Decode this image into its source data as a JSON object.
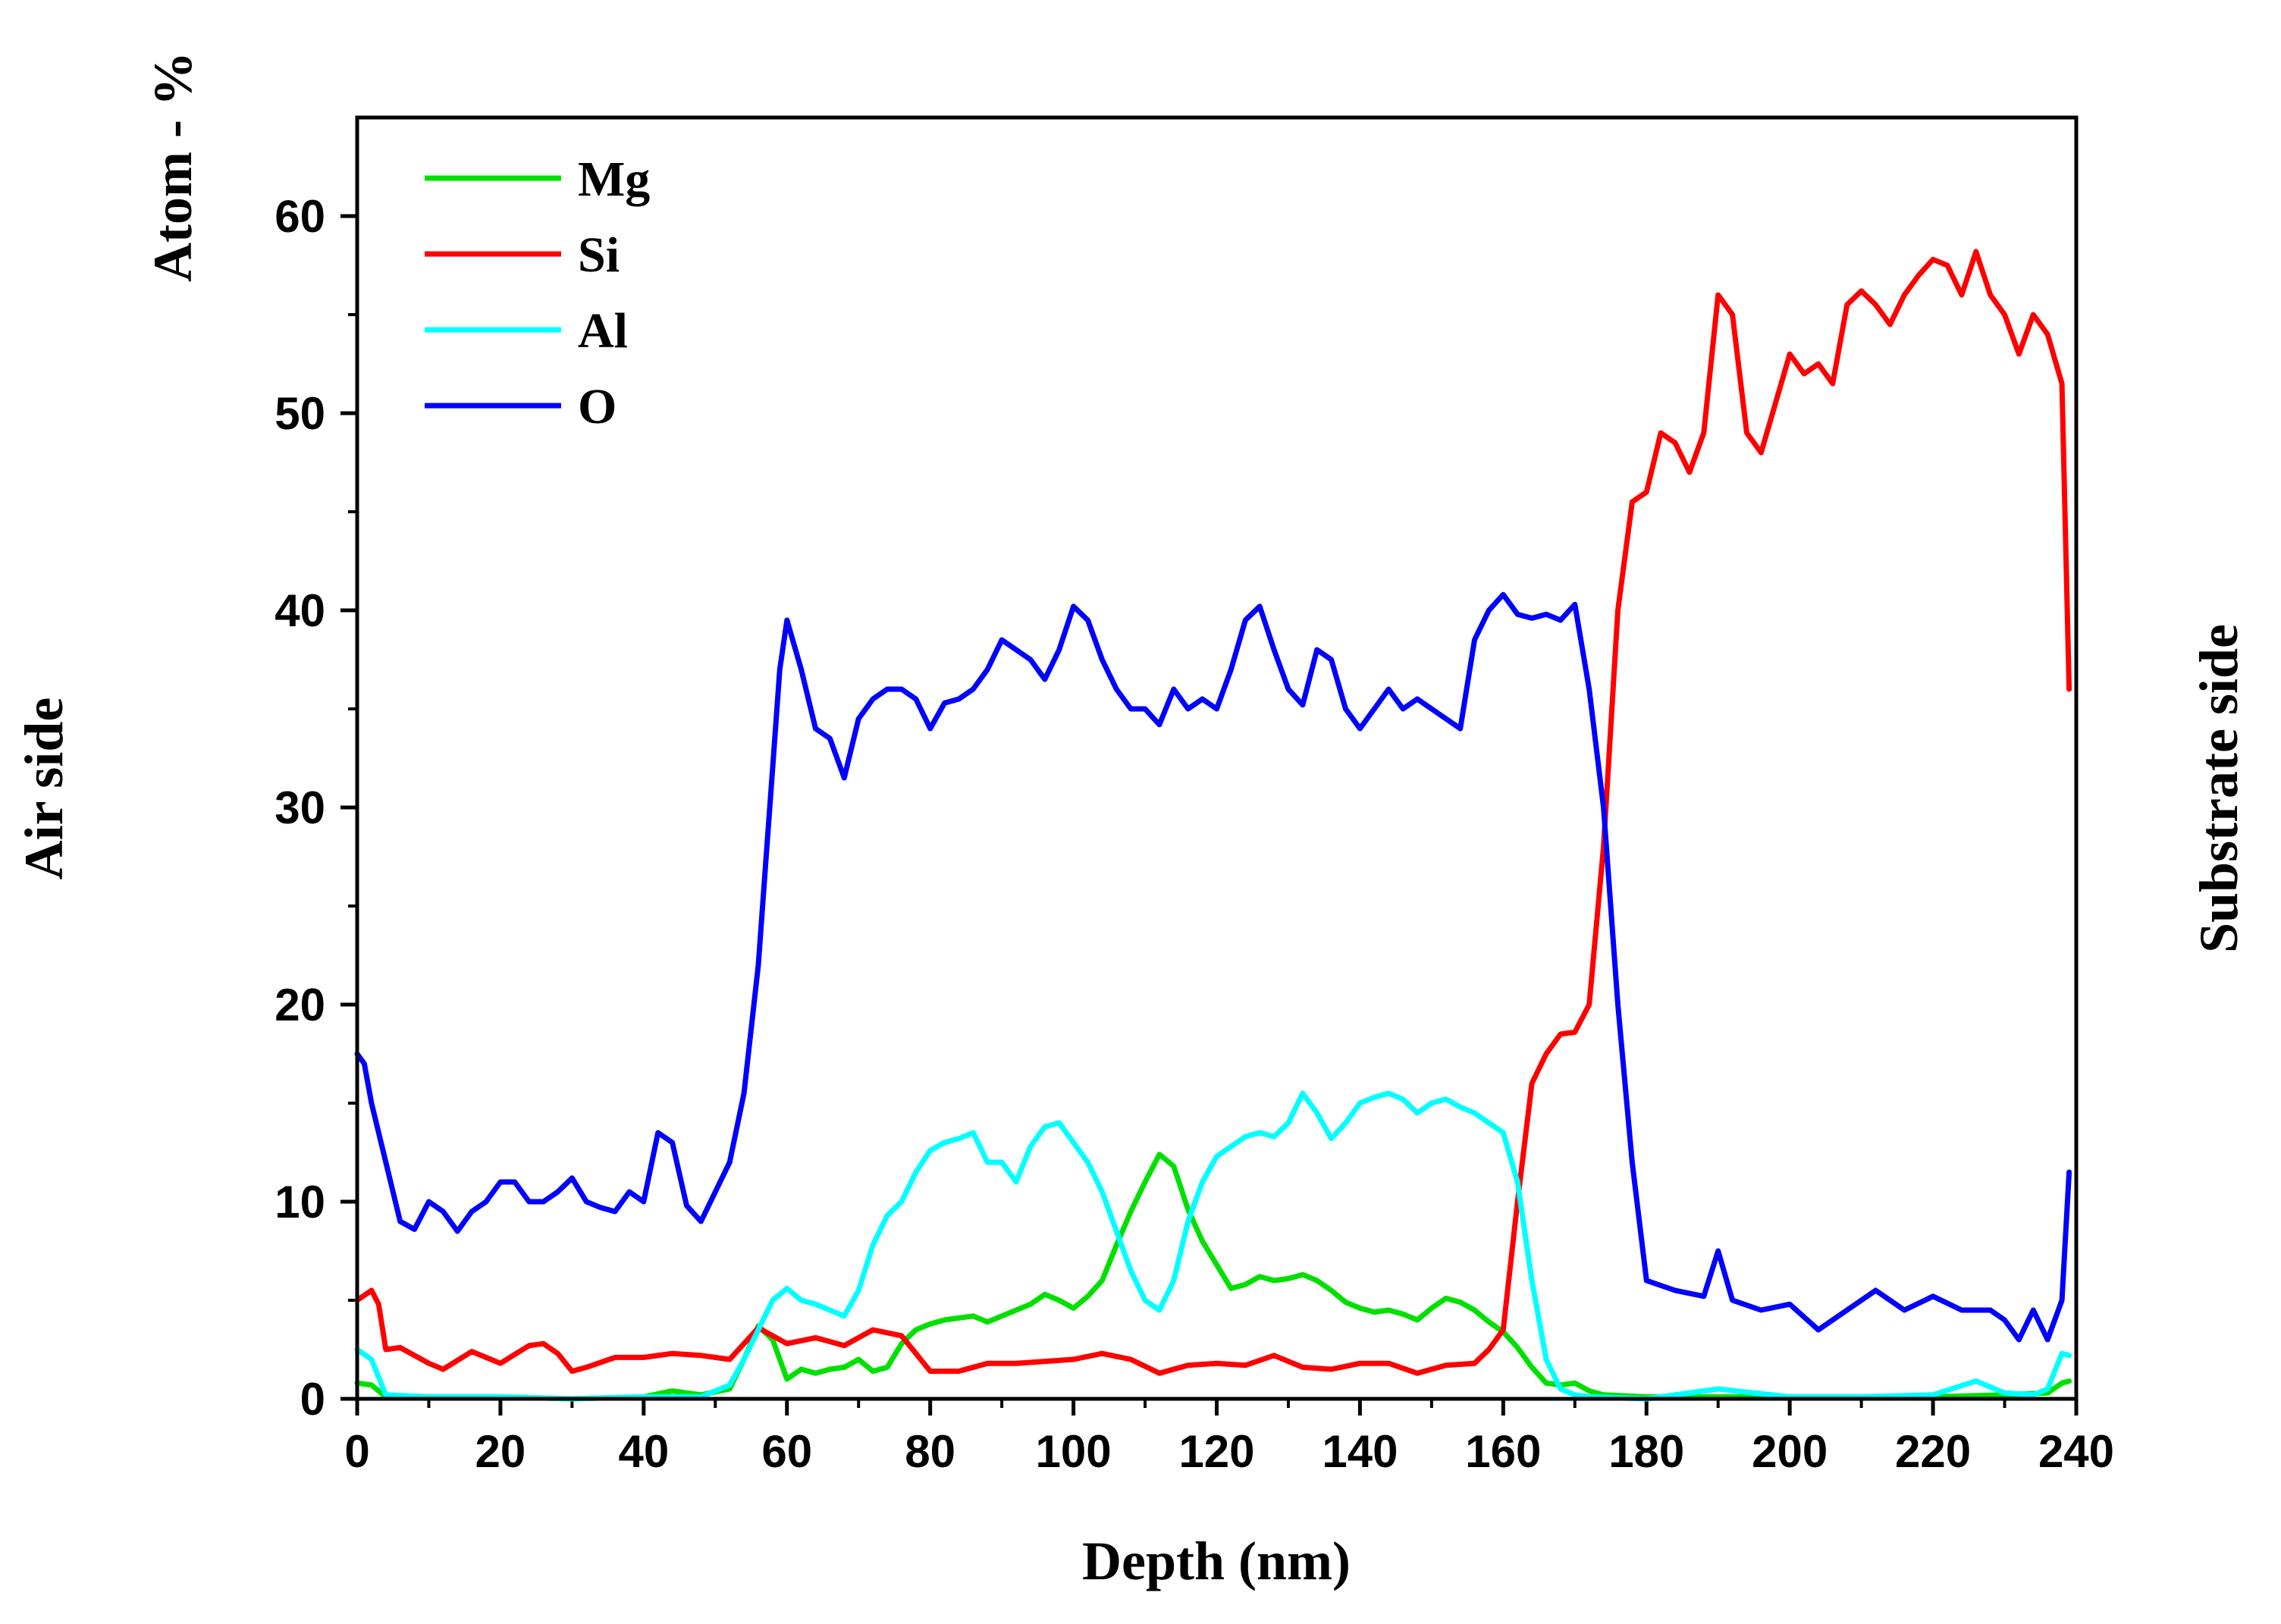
{
  "chart_data": {
    "type": "line",
    "title": "",
    "xlabel": "Depth (nm)",
    "ylabel": "Atom - %",
    "left_side_label": "Air side",
    "right_side_label": "Substrate side",
    "xlim": [
      0,
      240
    ],
    "ylim": [
      0,
      65
    ],
    "xticks": [
      0,
      20,
      40,
      60,
      80,
      100,
      120,
      140,
      160,
      180,
      200,
      220,
      240
    ],
    "yticks": [
      0,
      10,
      20,
      30,
      40,
      50,
      60
    ],
    "legend_position": "top-left",
    "grid": false,
    "series": [
      {
        "name": "Mg",
        "color": "#00e000",
        "x": [
          0,
          2,
          4,
          10,
          20,
          30,
          40,
          44,
          48,
          52,
          54,
          56,
          58,
          60,
          62,
          64,
          66,
          68,
          70,
          72,
          74,
          76,
          78,
          80,
          82,
          84,
          86,
          88,
          90,
          92,
          94,
          96,
          98,
          100,
          102,
          104,
          106,
          108,
          110,
          112,
          114,
          116,
          118,
          120,
          122,
          124,
          126,
          128,
          130,
          132,
          134,
          136,
          138,
          140,
          142,
          144,
          146,
          148,
          150,
          152,
          154,
          156,
          158,
          160,
          162,
          164,
          166,
          168,
          170,
          172,
          174,
          180,
          190,
          200,
          210,
          220,
          230,
          236,
          238,
          239
        ],
        "y": [
          0.8,
          0.7,
          0.1,
          0.1,
          0.1,
          0.0,
          0.1,
          0.4,
          0.2,
          0.5,
          2.0,
          3.7,
          3.0,
          1.0,
          1.5,
          1.3,
          1.5,
          1.6,
          2.0,
          1.4,
          1.6,
          2.8,
          3.5,
          3.8,
          4.0,
          4.1,
          4.2,
          3.9,
          4.2,
          4.5,
          4.8,
          5.3,
          5.0,
          4.6,
          5.2,
          6.0,
          7.8,
          9.5,
          11.0,
          12.4,
          11.8,
          9.6,
          8.0,
          6.8,
          5.6,
          5.8,
          6.2,
          6.0,
          6.1,
          6.3,
          6.0,
          5.5,
          4.9,
          4.6,
          4.4,
          4.5,
          4.3,
          4.0,
          4.6,
          5.1,
          4.9,
          4.5,
          3.9,
          3.4,
          2.6,
          1.6,
          0.8,
          0.7,
          0.8,
          0.4,
          0.2,
          0.1,
          0.1,
          0.1,
          0.1,
          0.1,
          0.2,
          0.3,
          0.8,
          0.9
        ]
      },
      {
        "name": "Si",
        "color": "#ff0000",
        "x": [
          0,
          2,
          3,
          4,
          6,
          10,
          12,
          16,
          20,
          24,
          26,
          28,
          30,
          32,
          36,
          40,
          44,
          48,
          52,
          56,
          60,
          64,
          68,
          72,
          76,
          80,
          84,
          88,
          92,
          96,
          100,
          104,
          108,
          112,
          116,
          120,
          124,
          128,
          132,
          136,
          140,
          144,
          148,
          152,
          156,
          158,
          160,
          162,
          164,
          166,
          168,
          170,
          172,
          174,
          176,
          178,
          180,
          182,
          184,
          186,
          188,
          190,
          192,
          194,
          196,
          198,
          200,
          202,
          204,
          206,
          208,
          210,
          212,
          214,
          216,
          218,
          220,
          222,
          224,
          226,
          228,
          230,
          232,
          234,
          236,
          238,
          239
        ],
        "y": [
          5.0,
          5.5,
          4.8,
          2.5,
          2.6,
          1.8,
          1.5,
          2.4,
          1.8,
          2.7,
          2.8,
          2.3,
          1.4,
          1.6,
          2.1,
          2.1,
          2.3,
          2.2,
          2.0,
          3.6,
          2.8,
          3.1,
          2.7,
          3.5,
          3.2,
          1.4,
          1.4,
          1.8,
          1.8,
          1.9,
          2.0,
          2.3,
          2.0,
          1.3,
          1.7,
          1.8,
          1.7,
          2.2,
          1.6,
          1.5,
          1.8,
          1.8,
          1.3,
          1.7,
          1.8,
          2.5,
          3.5,
          10.0,
          16.0,
          17.5,
          18.5,
          18.6,
          20.0,
          28.0,
          40.0,
          45.5,
          46.0,
          49.0,
          48.5,
          47.0,
          49.0,
          56.0,
          55.0,
          49.0,
          48.0,
          50.5,
          53.0,
          52.0,
          52.5,
          51.5,
          55.5,
          56.2,
          55.5,
          54.5,
          56.0,
          57.0,
          57.8,
          57.5,
          56.0,
          58.2,
          56.0,
          55.0,
          53.0,
          55.0,
          54.0,
          51.5,
          36.0
        ]
      },
      {
        "name": "Al",
        "color": "#00ffff",
        "x": [
          0,
          2,
          4,
          10,
          20,
          30,
          40,
          48,
          52,
          54,
          56,
          58,
          60,
          62,
          64,
          66,
          68,
          70,
          72,
          74,
          76,
          78,
          80,
          82,
          84,
          86,
          88,
          90,
          92,
          94,
          96,
          98,
          100,
          102,
          104,
          106,
          108,
          110,
          112,
          114,
          116,
          118,
          120,
          122,
          124,
          126,
          128,
          130,
          132,
          134,
          136,
          138,
          140,
          142,
          144,
          146,
          148,
          150,
          152,
          154,
          156,
          158,
          160,
          162,
          164,
          166,
          168,
          170,
          172,
          180,
          190,
          200,
          210,
          220,
          226,
          230,
          234,
          236,
          238,
          239
        ],
        "y": [
          2.5,
          2.0,
          0.2,
          0.1,
          0.1,
          0.0,
          0.1,
          0.1,
          0.7,
          2.0,
          3.5,
          5.0,
          5.6,
          5.0,
          4.8,
          4.5,
          4.2,
          5.5,
          7.8,
          9.3,
          10.0,
          11.5,
          12.6,
          13.0,
          13.2,
          13.5,
          12.0,
          12.0,
          11.0,
          12.8,
          13.8,
          14.0,
          13.0,
          12.0,
          10.5,
          8.5,
          6.5,
          5.0,
          4.5,
          6.0,
          9.0,
          11.0,
          12.3,
          12.8,
          13.3,
          13.5,
          13.3,
          14.0,
          15.5,
          14.5,
          13.2,
          14.0,
          15.0,
          15.3,
          15.5,
          15.2,
          14.5,
          15.0,
          15.2,
          14.8,
          14.5,
          14.0,
          13.5,
          11.0,
          6.0,
          2.0,
          0.5,
          0.2,
          0.1,
          0.0,
          0.5,
          0.1,
          0.1,
          0.2,
          0.9,
          0.3,
          0.2,
          0.5,
          2.3,
          2.2
        ]
      },
      {
        "name": "O",
        "color": "#0000ff",
        "x": [
          0,
          1,
          2,
          4,
          6,
          8,
          10,
          12,
          14,
          16,
          18,
          20,
          22,
          24,
          26,
          28,
          30,
          32,
          34,
          36,
          38,
          40,
          42,
          44,
          46,
          48,
          50,
          52,
          54,
          56,
          57,
          58,
          59,
          60,
          62,
          64,
          66,
          68,
          70,
          72,
          74,
          76,
          78,
          80,
          82,
          84,
          86,
          88,
          90,
          92,
          94,
          96,
          98,
          100,
          102,
          104,
          106,
          108,
          110,
          112,
          114,
          116,
          118,
          120,
          122,
          124,
          126,
          128,
          130,
          132,
          134,
          136,
          138,
          140,
          142,
          144,
          146,
          148,
          150,
          152,
          154,
          156,
          158,
          160,
          162,
          164,
          166,
          168,
          170,
          172,
          174,
          176,
          178,
          180,
          184,
          188,
          190,
          192,
          196,
          200,
          204,
          208,
          212,
          216,
          220,
          224,
          228,
          230,
          232,
          234,
          236,
          238,
          239
        ],
        "y": [
          17.5,
          17.0,
          15.0,
          12.0,
          9.0,
          8.6,
          10.0,
          9.5,
          8.5,
          9.5,
          10.0,
          11.0,
          11.0,
          10.0,
          10.0,
          10.5,
          11.2,
          10.0,
          9.7,
          9.5,
          10.5,
          10.0,
          13.5,
          13.0,
          9.8,
          9.0,
          10.5,
          12.0,
          15.5,
          22.0,
          27.0,
          32.0,
          37.0,
          39.5,
          37.0,
          34.0,
          33.5,
          31.5,
          34.5,
          35.5,
          36.0,
          36.0,
          35.5,
          34.0,
          35.3,
          35.5,
          36.0,
          37.0,
          38.5,
          38.0,
          37.5,
          36.5,
          38.0,
          40.2,
          39.5,
          37.5,
          36.0,
          35.0,
          35.0,
          34.2,
          36.0,
          35.0,
          35.5,
          35.0,
          37.0,
          39.5,
          40.2,
          38.0,
          36.0,
          35.2,
          38.0,
          37.5,
          35.0,
          34.0,
          35.0,
          36.0,
          35.0,
          35.5,
          35.0,
          34.5,
          34.0,
          38.5,
          40.0,
          40.8,
          39.8,
          39.6,
          39.8,
          39.5,
          40.3,
          36.0,
          30.0,
          20.0,
          12.0,
          6.0,
          5.5,
          5.2,
          7.5,
          5.0,
          4.5,
          4.8,
          3.5,
          4.5,
          5.5,
          4.5,
          5.2,
          4.5,
          4.5,
          4.0,
          3.0,
          4.5,
          3.0,
          5.0,
          11.5
        ]
      }
    ]
  }
}
